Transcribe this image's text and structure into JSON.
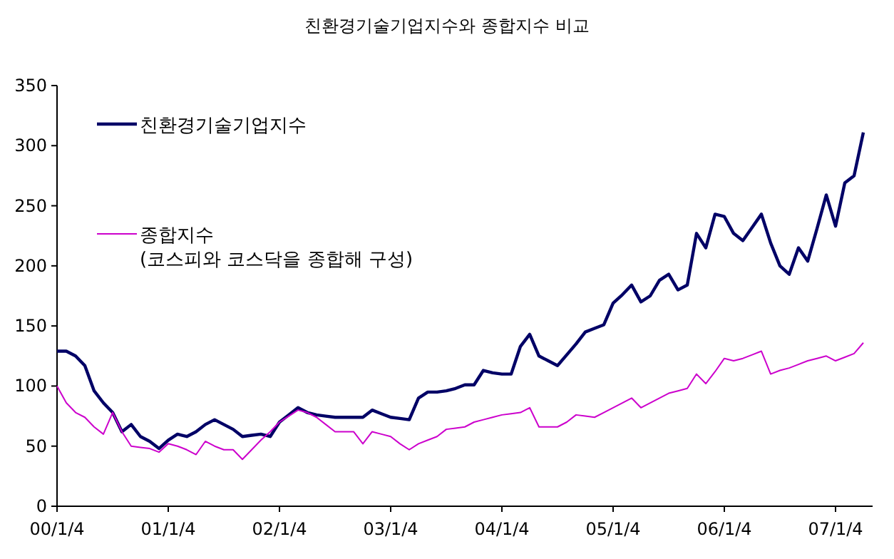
{
  "chart_data": {
    "type": "line",
    "title": "친환경기술기업지수와 종합지수 비교",
    "categories": [
      "00/1/4",
      null,
      null,
      null,
      null,
      null,
      null,
      null,
      null,
      null,
      null,
      null,
      "01/1/4",
      null,
      null,
      null,
      null,
      null,
      null,
      null,
      null,
      null,
      null,
      null,
      "02/1/4",
      null,
      null,
      null,
      null,
      null,
      null,
      null,
      null,
      null,
      null,
      null,
      "03/1/4",
      null,
      null,
      null,
      null,
      null,
      null,
      null,
      null,
      null,
      null,
      null,
      "04/1/4",
      null,
      null,
      null,
      null,
      null,
      null,
      null,
      null,
      null,
      null,
      null,
      "05/1/4",
      null,
      null,
      null,
      null,
      null,
      null,
      null,
      null,
      null,
      null,
      null,
      "06/1/4",
      null,
      null,
      null,
      null,
      null,
      null,
      null,
      null,
      null,
      null,
      null,
      "07/1/4",
      null,
      null,
      null
    ],
    "ylim": [
      0,
      350
    ],
    "yticks": [
      0,
      50,
      100,
      150,
      200,
      250,
      300,
      350
    ],
    "grid": false,
    "legend": "top left",
    "marker": "none",
    "line_style": "solid",
    "series": [
      {
        "name": "친환경기술기업지수",
        "color": "#000066",
        "values": [
          129,
          129,
          125,
          117,
          96,
          86,
          78,
          62,
          68,
          58,
          54,
          48,
          55,
          60,
          58,
          62,
          68,
          72,
          68,
          64,
          58,
          59,
          60,
          58,
          70,
          76,
          82,
          78,
          76,
          75,
          74,
          74,
          74,
          74,
          80,
          77,
          74,
          73,
          72,
          90,
          95,
          95,
          96,
          98,
          101,
          101,
          113,
          111,
          110,
          110,
          133,
          143,
          125,
          121,
          117,
          126,
          135,
          145,
          148,
          151,
          169,
          176,
          184,
          170,
          175,
          188,
          193,
          180,
          184,
          227,
          215,
          243,
          241,
          227,
          221,
          232,
          243,
          219,
          200,
          193,
          215,
          204,
          231,
          259,
          233,
          269,
          275,
          311
        ]
      },
      {
        "name": "종합지수\n(코스피와 코스닥을 종합해 구성)",
        "color": "#cc00cc",
        "values": [
          100,
          86,
          78,
          74,
          66,
          60,
          78,
          62,
          50,
          49,
          48,
          45,
          52,
          50,
          47,
          43,
          54,
          50,
          47,
          47,
          39,
          47,
          55,
          62,
          70,
          75,
          80,
          78,
          74,
          68,
          62,
          62,
          62,
          52,
          62,
          60,
          58,
          52,
          47,
          52,
          55,
          58,
          64,
          65,
          66,
          70,
          72,
          74,
          76,
          77,
          78,
          82,
          66,
          66,
          66,
          70,
          76,
          75,
          74,
          78,
          82,
          86,
          90,
          82,
          86,
          90,
          94,
          96,
          98,
          110,
          102,
          112,
          123,
          121,
          123,
          126,
          129,
          110,
          113,
          115,
          118,
          121,
          123,
          125,
          121,
          124,
          127,
          136
        ]
      }
    ]
  }
}
